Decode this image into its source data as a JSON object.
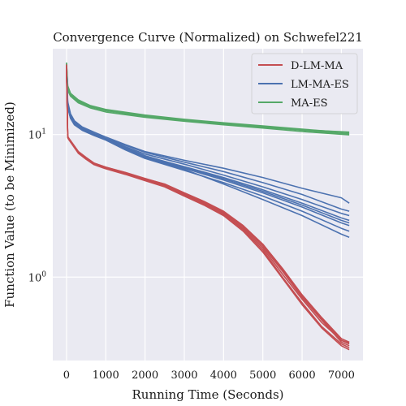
{
  "chart_data": {
    "type": "line",
    "title": "Convergence Curve (Normalized) on Schwefel221",
    "xlabel": "Running Time (Seconds)",
    "ylabel": "Function Value (to be Minimized)",
    "xlim": [
      -350,
      7550
    ],
    "ylim": [
      0.26,
      40
    ],
    "yscale": "log",
    "grid": true,
    "background": "#EAEAF2",
    "legend_position": "top-right",
    "x_ticks": [
      0,
      1000,
      2000,
      3000,
      4000,
      5000,
      6000,
      7000
    ],
    "x_tick_labels": [
      "0",
      "1000",
      "2000",
      "3000",
      "4000",
      "5000",
      "6000",
      "7000"
    ],
    "y_ticks": [
      1,
      10
    ],
    "y_tick_labels": [
      "10^0",
      "10^1"
    ],
    "legend": [
      {
        "name": "D-LM-MA",
        "color": "#C44E52"
      },
      {
        "name": "LM-MA-ES",
        "color": "#4C72B0"
      },
      {
        "name": "MA-ES",
        "color": "#55A868"
      }
    ],
    "series": [
      {
        "group": "MA-ES",
        "color": "#55A868",
        "runs": [
          {
            "x": [
              0,
              30,
              100,
              300,
              600,
              1000,
              2000,
              3000,
              4000,
              5000,
              6000,
              7200
            ],
            "y": [
              32,
              22,
              19.5,
              17.5,
              16,
              15,
              13.7,
              12.8,
              12.1,
              11.5,
              10.9,
              10.3
            ]
          },
          {
            "x": [
              0,
              30,
              100,
              300,
              600,
              1000,
              2000,
              3000,
              4000,
              5000,
              6000,
              7200
            ],
            "y": [
              31,
              21,
              19,
              17,
              15.7,
              14.7,
              13.4,
              12.6,
              11.9,
              11.3,
              10.7,
              10.1
            ]
          },
          {
            "x": [
              0,
              30,
              100,
              300,
              600,
              1000,
              2000,
              3000,
              4000,
              5000,
              6000,
              7200
            ],
            "y": [
              30,
              20.5,
              18.6,
              16.7,
              15.4,
              14.4,
              13.2,
              12.4,
              11.7,
              11.1,
              10.5,
              9.95
            ]
          },
          {
            "x": [
              0,
              30,
              100,
              300,
              600,
              1000,
              2000,
              3000,
              4000,
              5000,
              6000,
              7200
            ],
            "y": [
              31.5,
              21.5,
              19.2,
              17.2,
              15.9,
              14.9,
              13.6,
              12.7,
              12.0,
              11.4,
              10.8,
              10.4
            ]
          }
        ]
      },
      {
        "group": "LM-MA-ES",
        "color": "#4C72B0",
        "runs": [
          {
            "x": [
              0,
              30,
              100,
              200,
              400,
              700,
              1000,
              1500,
              2000,
              3000,
              4000,
              5000,
              6000,
              7000,
              7200
            ],
            "y": [
              30,
              17,
              14,
              12.5,
              11.3,
              10.4,
              9.6,
              8.5,
              7.6,
              6.6,
              5.8,
              5.0,
              4.2,
              3.6,
              3.3
            ]
          },
          {
            "x": [
              0,
              30,
              100,
              200,
              400,
              700,
              1000,
              1500,
              2000,
              3000,
              4000,
              5000,
              6000,
              7000,
              7200
            ],
            "y": [
              29,
              16.5,
              13.7,
              12.2,
              11.1,
              10.2,
              9.4,
              8.4,
              7.5,
              6.4,
              5.5,
              4.6,
              3.8,
              3.0,
              2.9
            ]
          },
          {
            "x": [
              0,
              30,
              100,
              200,
              400,
              700,
              1000,
              1500,
              2000,
              3000,
              4000,
              5000,
              6000,
              7000,
              7200
            ],
            "y": [
              28,
              16,
              13.4,
              12.0,
              10.9,
              10.0,
              9.3,
              8.2,
              7.3,
              6.2,
              5.2,
              4.3,
              3.5,
              2.8,
              2.7
            ]
          },
          {
            "x": [
              0,
              30,
              100,
              200,
              400,
              700,
              1000,
              1500,
              2000,
              3000,
              4000,
              5000,
              6000,
              7000,
              7200
            ],
            "y": [
              28.5,
              16.2,
              13.5,
              12.1,
              11.0,
              10.1,
              9.35,
              8.1,
              7.1,
              5.9,
              4.9,
              4.0,
              3.2,
              2.5,
              2.4
            ]
          },
          {
            "x": [
              0,
              30,
              100,
              200,
              400,
              700,
              1000,
              1500,
              2000,
              3000,
              4000,
              5000,
              6000,
              7000,
              7200
            ],
            "y": [
              27,
              15.8,
              13.2,
              11.8,
              10.8,
              9.9,
              9.2,
              8.0,
              7.0,
              5.8,
              4.8,
              3.9,
              3.1,
              2.4,
              2.3
            ]
          },
          {
            "x": [
              0,
              30,
              100,
              200,
              400,
              700,
              1000,
              1500,
              2000,
              3000,
              4000,
              5000,
              6000,
              7000,
              7200
            ],
            "y": [
              27.5,
              15.9,
              13.3,
              11.9,
              10.85,
              9.95,
              9.25,
              8.05,
              7.05,
              5.95,
              5.0,
              4.1,
              3.3,
              2.6,
              2.5
            ]
          },
          {
            "x": [
              0,
              30,
              100,
              200,
              400,
              700,
              1000,
              1500,
              2000,
              3000,
              4000,
              5000,
              6000,
              7000,
              7200
            ],
            "y": [
              26,
              15.5,
              13.0,
              11.7,
              10.7,
              9.85,
              9.15,
              7.8,
              6.8,
              5.6,
              4.6,
              3.7,
              2.9,
              2.2,
              2.1
            ]
          },
          {
            "x": [
              0,
              30,
              100,
              200,
              400,
              700,
              1000,
              1500,
              2000,
              3000,
              4000,
              5000,
              6000,
              7000,
              7200
            ],
            "y": [
              26.5,
              15.6,
              13.1,
              11.75,
              10.75,
              9.9,
              9.2,
              7.9,
              6.9,
              5.7,
              4.5,
              3.5,
              2.7,
              2.0,
              1.9
            ]
          }
        ]
      },
      {
        "group": "D-LM-MA",
        "color": "#C44E52",
        "runs": [
          {
            "x": [
              0,
              30,
              60,
              300,
              500,
              700,
              1000,
              1500,
              2000,
              2500,
              3000,
              3500,
              4000,
              4500,
              5000,
              5500,
              6000,
              6500,
              7000,
              7200
            ],
            "y": [
              30,
              9.7,
              9.4,
              7.6,
              6.9,
              6.3,
              5.9,
              5.4,
              4.9,
              4.5,
              3.9,
              3.4,
              2.9,
              2.3,
              1.7,
              1.15,
              0.75,
              0.52,
              0.37,
              0.35
            ]
          },
          {
            "x": [
              0,
              30,
              60,
              300,
              500,
              700,
              1000,
              1500,
              2000,
              2500,
              3000,
              3500,
              4000,
              4500,
              5000,
              5500,
              6000,
              6500,
              7000,
              7200
            ],
            "y": [
              29,
              9.6,
              9.3,
              7.5,
              6.8,
              6.25,
              5.85,
              5.35,
              4.85,
              4.4,
              3.8,
              3.3,
              2.8,
              2.2,
              1.6,
              1.05,
              0.7,
              0.48,
              0.36,
              0.34
            ]
          },
          {
            "x": [
              0,
              30,
              60,
              300,
              500,
              700,
              1000,
              1500,
              2000,
              2500,
              3000,
              3500,
              4000,
              4500,
              5000,
              5500,
              6000,
              6500,
              7000,
              7200
            ],
            "y": [
              28,
              9.55,
              9.25,
              7.45,
              6.75,
              6.2,
              5.8,
              5.3,
              4.8,
              4.35,
              3.75,
              3.25,
              2.75,
              2.15,
              1.55,
              1.0,
              0.66,
              0.45,
              0.34,
              0.32
            ]
          },
          {
            "x": [
              0,
              30,
              60,
              300,
              500,
              700,
              1000,
              1500,
              2000,
              2500,
              3000,
              3500,
              4000,
              4500,
              5000,
              5500,
              6000,
              6500,
              7000,
              7200
            ],
            "y": [
              31,
              9.65,
              9.35,
              7.55,
              6.85,
              6.28,
              5.88,
              5.38,
              4.88,
              4.45,
              3.85,
              3.35,
              2.85,
              2.25,
              1.65,
              1.1,
              0.72,
              0.5,
              0.35,
              0.33
            ]
          },
          {
            "x": [
              0,
              30,
              60,
              300,
              500,
              700,
              1000,
              1500,
              2000,
              2500,
              3000,
              3500,
              4000,
              4500,
              5000,
              5500,
              6000,
              6500,
              7000,
              7200
            ],
            "y": [
              27,
              9.5,
              9.2,
              7.4,
              6.7,
              6.15,
              5.75,
              5.25,
              4.75,
              4.3,
              3.7,
              3.2,
              2.7,
              2.1,
              1.5,
              0.98,
              0.64,
              0.44,
              0.33,
              0.31
            ]
          },
          {
            "x": [
              0,
              30,
              60,
              300,
              500,
              700,
              1000,
              1500,
              2000,
              2500,
              3000,
              3500,
              4000,
              4500,
              5000,
              5500,
              6000,
              6500,
              7000,
              7200
            ],
            "y": [
              30.5,
              9.7,
              9.4,
              7.6,
              6.9,
              6.3,
              5.9,
              5.42,
              4.92,
              4.48,
              3.88,
              3.38,
              2.88,
              2.28,
              1.7,
              1.12,
              0.74,
              0.51,
              0.36,
              0.345
            ]
          }
        ]
      }
    ]
  }
}
